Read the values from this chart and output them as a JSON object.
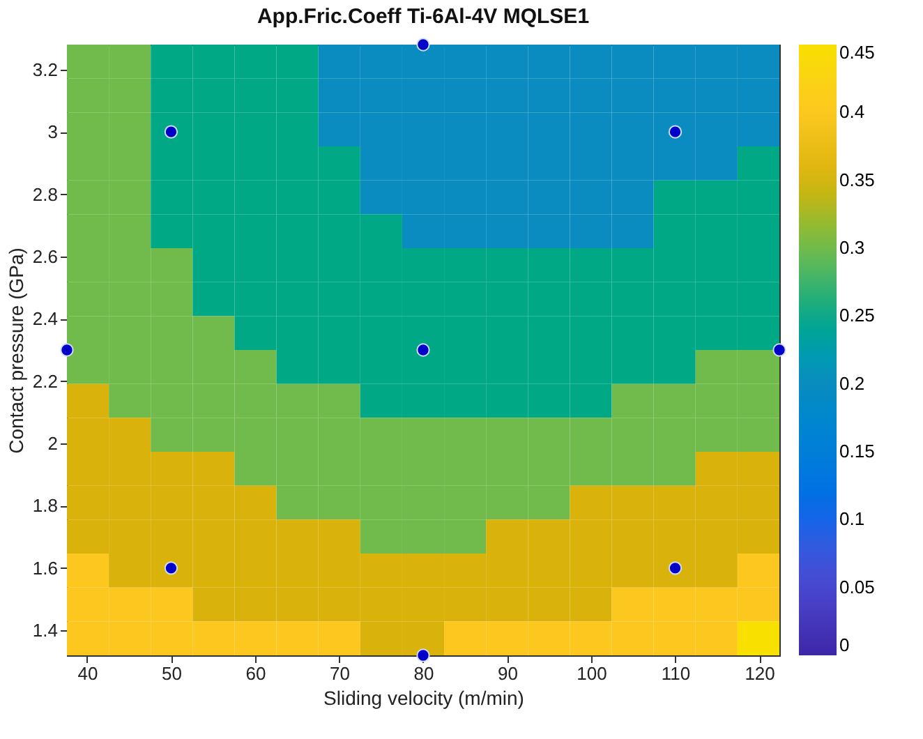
{
  "chart_data": {
    "type": "heatmap",
    "title": "App.Fric.Coeff Ti-6Al-4V MQLSE1",
    "xlabel": "Sliding velocity (m/min)",
    "ylabel": "Contact pressure (GPa)",
    "xlim": [
      37.6,
      122.4
    ],
    "xticks": [
      40,
      50,
      60,
      70,
      80,
      90,
      100,
      110,
      120
    ],
    "ylim": [
      1.32,
      3.28
    ],
    "yticks": [
      1.4,
      1.6,
      1.8,
      2,
      2.2,
      2.4,
      2.6,
      2.8,
      3,
      3.2
    ],
    "clim": [
      0,
      0.45
    ],
    "cticks": [
      0,
      0.05,
      0.1,
      0.15,
      0.2,
      0.25,
      0.3,
      0.35,
      0.4,
      0.45
    ],
    "colors": [
      "#3e26a8",
      "#4a48d0",
      "#1565e8",
      "#0d7fd8",
      "#0a8cc0",
      "#00a885",
      "#70bb4c",
      "#dab20c",
      "#fcc820",
      "#f8e000"
    ],
    "cells": [
      [
        0.3,
        0.3,
        0.25,
        0.25,
        0.25,
        0.25,
        0.2,
        0.2,
        0.2,
        0.2,
        0.2,
        0.2,
        0.2,
        0.2,
        0.2,
        0.2,
        0.2
      ],
      [
        0.3,
        0.3,
        0.25,
        0.25,
        0.25,
        0.25,
        0.2,
        0.2,
        0.2,
        0.2,
        0.2,
        0.2,
        0.2,
        0.2,
        0.2,
        0.2,
        0.2
      ],
      [
        0.3,
        0.3,
        0.25,
        0.25,
        0.25,
        0.25,
        0.2,
        0.2,
        0.2,
        0.2,
        0.2,
        0.2,
        0.2,
        0.2,
        0.2,
        0.2,
        0.2
      ],
      [
        0.3,
        0.3,
        0.25,
        0.25,
        0.25,
        0.25,
        0.25,
        0.2,
        0.2,
        0.2,
        0.2,
        0.2,
        0.2,
        0.2,
        0.2,
        0.2,
        0.25
      ],
      [
        0.3,
        0.3,
        0.25,
        0.25,
        0.25,
        0.25,
        0.25,
        0.2,
        0.2,
        0.2,
        0.2,
        0.2,
        0.2,
        0.2,
        0.25,
        0.25,
        0.25
      ],
      [
        0.3,
        0.3,
        0.25,
        0.25,
        0.25,
        0.25,
        0.25,
        0.25,
        0.2,
        0.2,
        0.2,
        0.2,
        0.2,
        0.2,
        0.25,
        0.25,
        0.25
      ],
      [
        0.3,
        0.3,
        0.3,
        0.25,
        0.25,
        0.25,
        0.25,
        0.25,
        0.25,
        0.25,
        0.25,
        0.25,
        0.25,
        0.25,
        0.25,
        0.25,
        0.25
      ],
      [
        0.3,
        0.3,
        0.3,
        0.25,
        0.25,
        0.25,
        0.25,
        0.25,
        0.25,
        0.25,
        0.25,
        0.25,
        0.25,
        0.25,
        0.25,
        0.25,
        0.25
      ],
      [
        0.3,
        0.3,
        0.3,
        0.3,
        0.25,
        0.25,
        0.25,
        0.25,
        0.25,
        0.25,
        0.25,
        0.25,
        0.25,
        0.25,
        0.25,
        0.25,
        0.25
      ],
      [
        0.3,
        0.3,
        0.3,
        0.3,
        0.3,
        0.25,
        0.25,
        0.25,
        0.25,
        0.25,
        0.25,
        0.25,
        0.25,
        0.25,
        0.25,
        0.3,
        0.3
      ],
      [
        0.35,
        0.3,
        0.3,
        0.3,
        0.3,
        0.3,
        0.3,
        0.25,
        0.25,
        0.25,
        0.25,
        0.25,
        0.25,
        0.3,
        0.3,
        0.3,
        0.3
      ],
      [
        0.35,
        0.35,
        0.3,
        0.3,
        0.3,
        0.3,
        0.3,
        0.3,
        0.3,
        0.3,
        0.3,
        0.3,
        0.3,
        0.3,
        0.3,
        0.3,
        0.3
      ],
      [
        0.35,
        0.35,
        0.35,
        0.35,
        0.3,
        0.3,
        0.3,
        0.3,
        0.3,
        0.3,
        0.3,
        0.3,
        0.3,
        0.3,
        0.3,
        0.35,
        0.35
      ],
      [
        0.35,
        0.35,
        0.35,
        0.35,
        0.35,
        0.3,
        0.3,
        0.3,
        0.3,
        0.3,
        0.3,
        0.3,
        0.35,
        0.35,
        0.35,
        0.35,
        0.35
      ],
      [
        0.35,
        0.35,
        0.35,
        0.35,
        0.35,
        0.35,
        0.35,
        0.3,
        0.3,
        0.3,
        0.35,
        0.35,
        0.35,
        0.35,
        0.35,
        0.35,
        0.35
      ],
      [
        0.4,
        0.35,
        0.35,
        0.35,
        0.35,
        0.35,
        0.35,
        0.35,
        0.35,
        0.35,
        0.35,
        0.35,
        0.35,
        0.35,
        0.35,
        0.35,
        0.4
      ],
      [
        0.4,
        0.4,
        0.4,
        0.35,
        0.35,
        0.35,
        0.35,
        0.35,
        0.35,
        0.35,
        0.35,
        0.35,
        0.35,
        0.4,
        0.4,
        0.4,
        0.4
      ],
      [
        0.4,
        0.4,
        0.4,
        0.4,
        0.4,
        0.4,
        0.4,
        0.35,
        0.35,
        0.4,
        0.4,
        0.4,
        0.4,
        0.4,
        0.4,
        0.4,
        0.45
      ]
    ],
    "marker": "circle",
    "series": [
      {
        "type": "scatter",
        "color": "#0000c8",
        "x": [
          50,
          110,
          50,
          110,
          37.6,
          122.4,
          80,
          80,
          80
        ],
        "values": [
          1.6,
          1.6,
          3,
          3,
          2.3,
          2.3,
          1.32,
          3.28,
          2.3
        ]
      }
    ]
  }
}
